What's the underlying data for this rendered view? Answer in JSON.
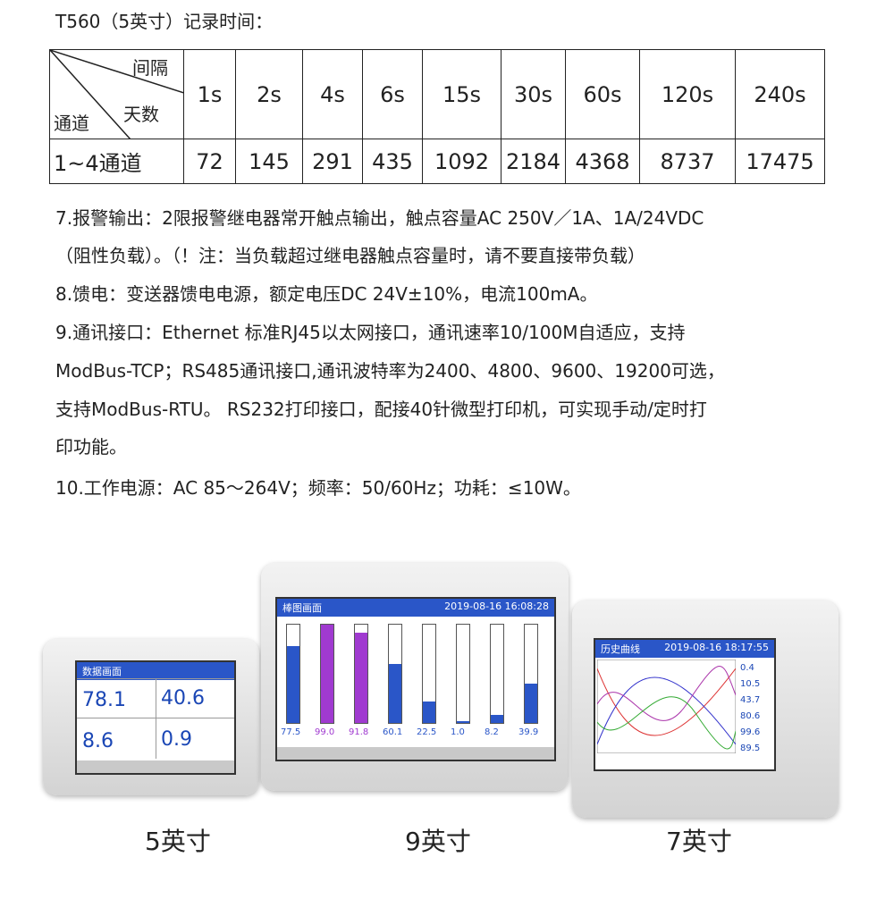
{
  "title": "T560（5英寸）记录时间：",
  "table": {
    "corner": {
      "interval": "间隔",
      "days": "天数",
      "channel": "通道"
    },
    "intervals": [
      "1s",
      "2s",
      "4s",
      "6s",
      "15s",
      "30s",
      "60s",
      "120s",
      "240s"
    ],
    "rows": [
      [
        "1~4通道",
        72,
        145,
        291,
        435,
        1092,
        2184,
        4368,
        8737,
        17475
      ]
    ]
  },
  "paragraphs": [
    "7.报警输出：2限报警继电器常开触点输出，触点容量AC 250V／1A、1A/24VDC",
    "（阻性负载）。（！注：当负载超过继电器触点容量时，请不要直接带负载）",
    "8.馈电：变送器馈电电源，额定电压DC 24V±10%，电流100mA。",
    "9.通讯接口：Ethernet 标准RJ45以太网接口，通讯速率10/100M自适应，支持",
    "ModBus-TCP；RS485通讯接口,通讯波特率为2400、4800、9600、19200可选，",
    "支持ModBus-RTU。 RS232打印接口，配接40针微型打印机，可实现手动/定时打",
    "印功能。",
    "10.工作电源：AC 85～264V；频率：50/60Hz；功耗：≤10W。"
  ],
  "devices": [
    {
      "screen_title": "数据画面",
      "values": [
        "78.1",
        "40.6",
        "8.6",
        "0.9"
      ]
    },
    {
      "screen_title": "棒图画面",
      "time": "2019-08-16 16:08:28",
      "values": [
        "77.5",
        "99.0",
        "91.8",
        "60.1",
        "22.5",
        "1.0",
        "8.2",
        "39.9"
      ]
    },
    {
      "screen_title": "历史曲线",
      "time": "2019-08-16 18:17:55",
      "values": [
        "0.4",
        "10.5",
        "43.7",
        "80.6",
        "99.6",
        "89.5"
      ]
    }
  ],
  "captions": [
    "5英寸",
    "9英寸",
    "7英寸"
  ]
}
